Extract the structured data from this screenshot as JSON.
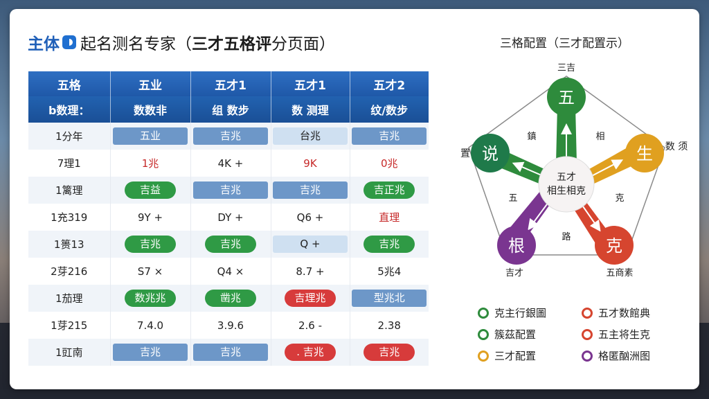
{
  "header": {
    "brand": "主体",
    "title_pre": "起名测名专家（",
    "title_bold": "三才五格评",
    "title_post": "分页面）"
  },
  "table": {
    "headers": [
      "五格",
      "五业",
      "五才1",
      "五才1",
      "五才2"
    ],
    "subheaders": [
      "b数理：",
      "数数非",
      "组 数步",
      "数 测理",
      "纹/数步"
    ],
    "rows": [
      [
        {
          "t": "1分年"
        },
        {
          "t": "五业",
          "s": "blue"
        },
        {
          "t": "吉兆",
          "s": "blue"
        },
        {
          "t": "台兆",
          "s": "lightblue"
        },
        {
          "t": "吉兆",
          "s": "blue"
        }
      ],
      [
        {
          "t": "7理1"
        },
        {
          "t": "1兆",
          "s": "red-text"
        },
        {
          "t": "4K +"
        },
        {
          "t": "9K",
          "s": "red-text"
        },
        {
          "t": "0兆",
          "s": "red-text"
        }
      ],
      [
        {
          "t": "1篱理"
        },
        {
          "t": "吉益",
          "s": "green"
        },
        {
          "t": "吉兆",
          "s": "blue"
        },
        {
          "t": "吉兆",
          "s": "blue"
        },
        {
          "t": "吉正兆",
          "s": "green"
        }
      ],
      [
        {
          "t": "1充319"
        },
        {
          "t": "9Y +"
        },
        {
          "t": "DY +"
        },
        {
          "t": "Q6 +"
        },
        {
          "t": "直理",
          "s": "red-text"
        }
      ],
      [
        {
          "t": "1篑13"
        },
        {
          "t": "吉兆",
          "s": "green"
        },
        {
          "t": "吉兆",
          "s": "green"
        },
        {
          "t": "Q +",
          "s": "lightblue"
        },
        {
          "t": "吉兆",
          "s": "green"
        }
      ],
      [
        {
          "t": "2芽216"
        },
        {
          "t": "S7 ×"
        },
        {
          "t": "Q4 ×"
        },
        {
          "t": "8.7 +"
        },
        {
          "t": "5兆4"
        }
      ],
      [
        {
          "t": "1茄理"
        },
        {
          "t": "数兆兆",
          "s": "green"
        },
        {
          "t": "凿兆",
          "s": "green"
        },
        {
          "t": "吉理兆",
          "s": "red"
        },
        {
          "t": "型兆北",
          "s": "blue"
        }
      ],
      [
        {
          "t": "1芽215"
        },
        {
          "t": "7.4.0"
        },
        {
          "t": "3.9.6"
        },
        {
          "t": "2.6 -"
        },
        {
          "t": "2.38"
        }
      ],
      [
        {
          "t": "1豇南"
        },
        {
          "t": "吉兆",
          "s": "blue"
        },
        {
          "t": "吉兆",
          "s": "blue"
        },
        {
          "t": ". 吉兆",
          "s": "red"
        },
        {
          "t": "吉兆",
          "s": "red"
        }
      ]
    ]
  },
  "diagram": {
    "title": "三格配置（三才配置示）",
    "center_line1": "五才",
    "center_line2": "相生相克",
    "nodes": {
      "top": "五",
      "right": "生",
      "bottom_right": "克",
      "bottom_left": "根",
      "left": "说"
    },
    "node_colors": {
      "top": "#2e8b3c",
      "right": "#e0a020",
      "bottom_right": "#d6452f",
      "bottom_left": "#7a3590",
      "left": "#1f7a4a"
    },
    "labels": {
      "top": "三吉",
      "left": "置",
      "right": "数\n须",
      "bottom_left": "吉才",
      "bottom_right": "五商素",
      "inner_upper_left": "鎮",
      "inner_upper_right": "相",
      "inner_left": "五",
      "inner_right": "克",
      "inner_bottom": "路"
    }
  },
  "legend": {
    "items": [
      {
        "label": "克主行銀圖",
        "color": "#2e8b3c"
      },
      {
        "label": "五才数館典",
        "color": "#d6452f"
      },
      {
        "label": "簇茲配置",
        "color": "#2e8b3c"
      },
      {
        "label": "五主将生克",
        "color": "#d6452f"
      },
      {
        "label": "三才配置",
        "color": "#e0a020"
      },
      {
        "label": "格匿酗洲图",
        "color": "#7a3590"
      }
    ]
  }
}
